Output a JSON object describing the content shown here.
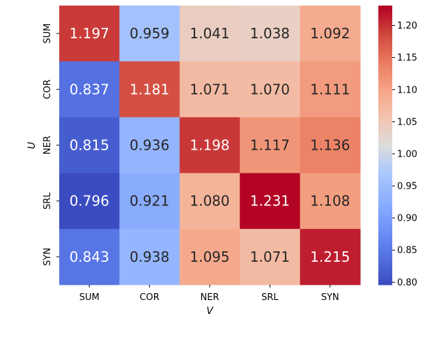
{
  "chart_data": {
    "type": "heatmap",
    "title": "",
    "xlabel": "V",
    "ylabel": "U",
    "x_categories": [
      "SUM",
      "COR",
      "NER",
      "SRL",
      "SYN"
    ],
    "y_categories": [
      "SUM",
      "COR",
      "NER",
      "SRL",
      "SYN"
    ],
    "values": [
      [
        1.197,
        0.959,
        1.041,
        1.038,
        1.092
      ],
      [
        0.837,
        1.181,
        1.071,
        1.07,
        1.111
      ],
      [
        0.815,
        0.936,
        1.198,
        1.117,
        1.136
      ],
      [
        0.796,
        0.921,
        1.08,
        1.231,
        1.108
      ],
      [
        0.843,
        0.938,
        1.095,
        1.071,
        1.215
      ]
    ],
    "colormap": "coolwarm",
    "vmin": 0.796,
    "vmax": 1.231,
    "colorbar_ticks": [
      "0.80",
      "0.85",
      "0.90",
      "0.95",
      "1.00",
      "1.05",
      "1.10",
      "1.15",
      "1.20"
    ],
    "annotation_format": "0.3f"
  }
}
